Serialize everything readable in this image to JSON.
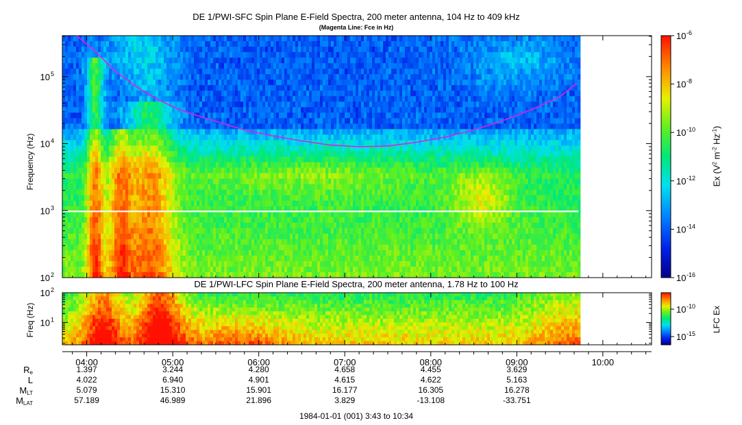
{
  "chart_data": [
    {
      "type": "heatmap",
      "title": "DE 1/PWI-SFC  Spin Plane E-Field Spectra, 200 meter antenna, 104 Hz to 409 kHz",
      "subtitle": "(Magenta Line: Fce in Hz)",
      "ylabel": "Frequency (Hz)",
      "y_scale": "log",
      "ylim": [
        100,
        409000
      ],
      "y_ticks": [
        {
          "value": 100,
          "base": "10",
          "exp": "2"
        },
        {
          "value": 1000,
          "base": "10",
          "exp": "3"
        },
        {
          "value": 10000,
          "base": "10",
          "exp": "4"
        },
        {
          "value": 100000,
          "base": "10",
          "exp": "5"
        }
      ],
      "data_gap_hz": [
        950,
        1000
      ],
      "colorbar": {
        "label_base": "Ex (V",
        "label_sup1": "2",
        "label_mid": " m",
        "label_sup2": "-2",
        "label_mid2": " Hz",
        "label_sup3": "-1",
        "label_end": ")",
        "scale": "log",
        "range": [
          1e-16,
          1e-06
        ],
        "ticks": [
          {
            "value": 1e-06,
            "base": "10",
            "exp": "-6"
          },
          {
            "value": 1e-08,
            "base": "10",
            "exp": "-8"
          },
          {
            "value": 1e-10,
            "base": "10",
            "exp": "-10"
          },
          {
            "value": 1e-12,
            "base": "10",
            "exp": "-12"
          },
          {
            "value": 1e-14,
            "base": "10",
            "exp": "-14"
          },
          {
            "value": 1e-16,
            "base": "10",
            "exp": "-16"
          }
        ]
      },
      "fce_line": {
        "name": "Fce in Hz",
        "color": "#e020e0",
        "points": [
          [
            "03:53",
            409000
          ],
          [
            "04:05",
            250000
          ],
          [
            "04:20",
            120000
          ],
          [
            "04:35",
            70000
          ],
          [
            "04:50",
            45000
          ],
          [
            "05:05",
            32000
          ],
          [
            "05:20",
            25000
          ],
          [
            "05:35",
            20000
          ],
          [
            "05:50",
            16000
          ],
          [
            "06:10",
            13000
          ],
          [
            "06:30",
            11000
          ],
          [
            "06:50",
            9500
          ],
          [
            "07:10",
            9000
          ],
          [
            "07:30",
            9200
          ],
          [
            "07:50",
            10500
          ],
          [
            "08:10",
            12500
          ],
          [
            "08:30",
            16000
          ],
          [
            "08:50",
            22000
          ],
          [
            "09:10",
            32000
          ],
          [
            "09:30",
            50000
          ],
          [
            "09:42",
            80000
          ]
        ]
      }
    },
    {
      "type": "heatmap",
      "title": "DE 1/PWI-LFC  Spin Plane E-Field Spectra, 200 meter antenna, 1.78 Hz to 100 Hz",
      "ylabel": "Freq (Hz)",
      "y_scale": "log",
      "ylim": [
        1.78,
        100
      ],
      "y_ticks": [
        {
          "value": 10,
          "base": "10",
          "exp": "1"
        },
        {
          "value": 100,
          "base": "10",
          "exp": "2"
        }
      ],
      "colorbar": {
        "label": "LFC Ex",
        "scale": "log",
        "ticks": [
          {
            "value": 1e-10,
            "base": "10",
            "exp": "-10"
          },
          {
            "value": 1e-15,
            "base": "10",
            "exp": "-15"
          }
        ]
      }
    }
  ],
  "x_axis": {
    "start": "03:43",
    "end": "10:34",
    "data_end": "09:43",
    "ticks": [
      "04:00",
      "05:00",
      "06:00",
      "07:00",
      "08:00",
      "09:00",
      "10:00"
    ]
  },
  "ephemeris": {
    "rows": [
      {
        "label": "R",
        "sub": "e",
        "values": [
          "1.397",
          "3.244",
          "4.280",
          "4.658",
          "4.455",
          "3.629"
        ]
      },
      {
        "label": "L",
        "sub": "",
        "values": [
          "4.022",
          "6.940",
          "4.901",
          "4.615",
          "4.622",
          "5.163"
        ]
      },
      {
        "label": "M",
        "sub": "LT",
        "values": [
          "5.079",
          "15.310",
          "15.901",
          "16.177",
          "16.305",
          "16.278"
        ]
      },
      {
        "label": "M",
        "sub": "LAT",
        "values": [
          "57.189",
          "46.989",
          "21.896",
          "3.829",
          "-13.108",
          "-33.751"
        ]
      }
    ]
  },
  "footer": "1984-01-01 (001) 3:43 to 10:34"
}
